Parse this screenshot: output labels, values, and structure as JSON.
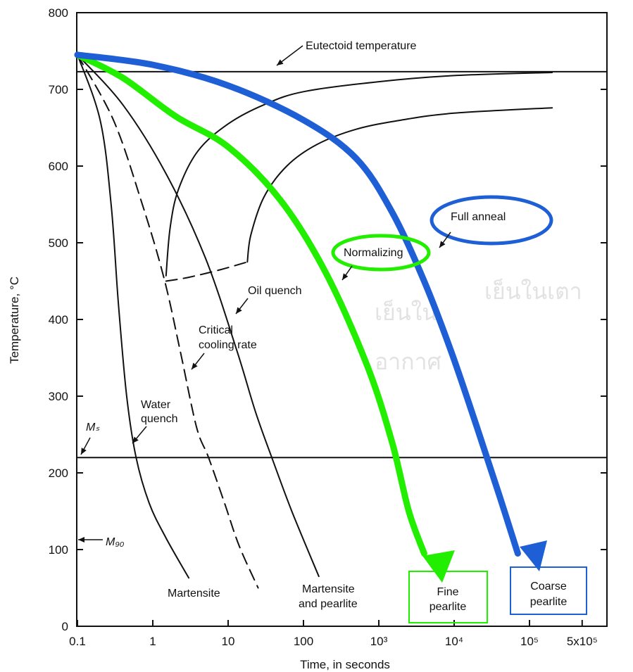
{
  "chart_data": {
    "type": "line",
    "xlabel": "Time, in seconds",
    "ylabel": "Temperature, °C",
    "x_scale": "log",
    "xlim": [
      0.1,
      500000
    ],
    "ylim": [
      0,
      800
    ],
    "x_ticks": [
      {
        "value": 0.1,
        "label": "0.1"
      },
      {
        "value": 1,
        "label": "1"
      },
      {
        "value": 10,
        "label": "10"
      },
      {
        "value": 100,
        "label": "100"
      },
      {
        "value": 1000,
        "label": "10³"
      },
      {
        "value": 10000,
        "label": "10⁴"
      },
      {
        "value": 100000,
        "label": "10⁵"
      },
      {
        "value": 500000,
        "label": "5x10⁵"
      }
    ],
    "y_ticks": [
      0,
      100,
      200,
      300,
      400,
      500,
      600,
      700,
      800
    ],
    "grid": false,
    "colors": {
      "normalizing": "#22ee00",
      "full_anneal": "#1f5fd6",
      "axes": "#111111"
    },
    "reference_lines": [
      {
        "name": "eutectoid",
        "y": 723,
        "label": "Eutectoid temperature"
      },
      {
        "name": "ms",
        "y": 220,
        "label": "Mₛ"
      },
      {
        "name": "m90",
        "y": 115,
        "label": "M₉₀"
      }
    ],
    "transformation_curves": [
      {
        "name": "start",
        "style": "solid",
        "points": [
          [
            1.5,
            457
          ],
          [
            1.7,
            520
          ],
          [
            2.2,
            570
          ],
          [
            4,
            620
          ],
          [
            10,
            655
          ],
          [
            30,
            680
          ],
          [
            100,
            697
          ],
          [
            1000,
            710
          ],
          [
            10000,
            718
          ],
          [
            200000,
            722
          ]
        ]
      },
      {
        "name": "finish",
        "style": "solid",
        "points": [
          [
            18,
            475
          ],
          [
            20,
            510
          ],
          [
            30,
            560
          ],
          [
            60,
            600
          ],
          [
            150,
            628
          ],
          [
            500,
            648
          ],
          [
            2000,
            660
          ],
          [
            10000,
            669
          ],
          [
            200000,
            676
          ]
        ]
      },
      {
        "name": "finish-lower",
        "style": "dashed",
        "points": [
          [
            1.5,
            450
          ],
          [
            3,
            455
          ],
          [
            8,
            465
          ],
          [
            18,
            475
          ]
        ]
      }
    ],
    "cooling_curves": [
      {
        "name": "water-quench",
        "style": "solid",
        "points": [
          [
            0.1,
            745
          ],
          [
            0.2,
            660
          ],
          [
            0.28,
            550
          ],
          [
            0.35,
            420
          ],
          [
            0.45,
            300
          ],
          [
            0.6,
            220
          ],
          [
            0.9,
            160
          ],
          [
            1.5,
            115
          ],
          [
            3,
            63
          ]
        ]
      },
      {
        "name": "critical-cooling-rate",
        "style": "dashed",
        "points": [
          [
            0.1,
            745
          ],
          [
            0.3,
            660
          ],
          [
            0.7,
            555
          ],
          [
            1.4,
            455
          ],
          [
            2.3,
            360
          ],
          [
            3.8,
            260
          ],
          [
            5.5,
            220
          ],
          [
            9,
            160
          ],
          [
            14,
            105
          ],
          [
            25,
            50
          ]
        ]
      },
      {
        "name": "oil-quench",
        "style": "solid",
        "points": [
          [
            0.1,
            745
          ],
          [
            0.4,
            680
          ],
          [
            1.5,
            590
          ],
          [
            5,
            480
          ],
          [
            13,
            360
          ],
          [
            23,
            280
          ],
          [
            38,
            220
          ],
          [
            70,
            150
          ],
          [
            160,
            65
          ]
        ]
      },
      {
        "name": "normalizing",
        "style": "thick",
        "color": "#22ee00",
        "points": [
          [
            0.1,
            745
          ],
          [
            0.4,
            715
          ],
          [
            2,
            665
          ],
          [
            10,
            625
          ],
          [
            50,
            555
          ],
          [
            200,
            460
          ],
          [
            700,
            340
          ],
          [
            1500,
            240
          ],
          [
            2500,
            150
          ],
          [
            4000,
            95
          ]
        ]
      },
      {
        "name": "full-anneal",
        "style": "thick",
        "color": "#1f5fd6",
        "points": [
          [
            0.1,
            745
          ],
          [
            1,
            732
          ],
          [
            10,
            705
          ],
          [
            100,
            660
          ],
          [
            500,
            610
          ],
          [
            1500,
            540
          ],
          [
            4000,
            450
          ],
          [
            9000,
            360
          ],
          [
            20000,
            260
          ],
          [
            40000,
            170
          ],
          [
            70000,
            95
          ]
        ]
      }
    ],
    "annotations": {
      "eutectoid": "Eutectoid temperature",
      "full_anneal": "Full anneal",
      "normalizing": "Normalizing",
      "oil_quench": "Oil quench",
      "critical_1": "Critical",
      "critical_2": "cooling rate",
      "water_1": "Water",
      "water_2": "quench",
      "ms": "Mₛ",
      "m90": "M₉₀",
      "martensite": "Martensite",
      "martensite_pearlite_1": "Martensite",
      "martensite_pearlite_2": "and pearlite",
      "fine_pearlite_1": "Fine",
      "fine_pearlite_2": "pearlite",
      "coarse_pearlite_1": "Coarse",
      "coarse_pearlite_2": "pearlite",
      "thai_air_1": "เย็นใน",
      "thai_air_2": "อากาศ",
      "thai_furnace": "เย็นในเตา"
    }
  }
}
